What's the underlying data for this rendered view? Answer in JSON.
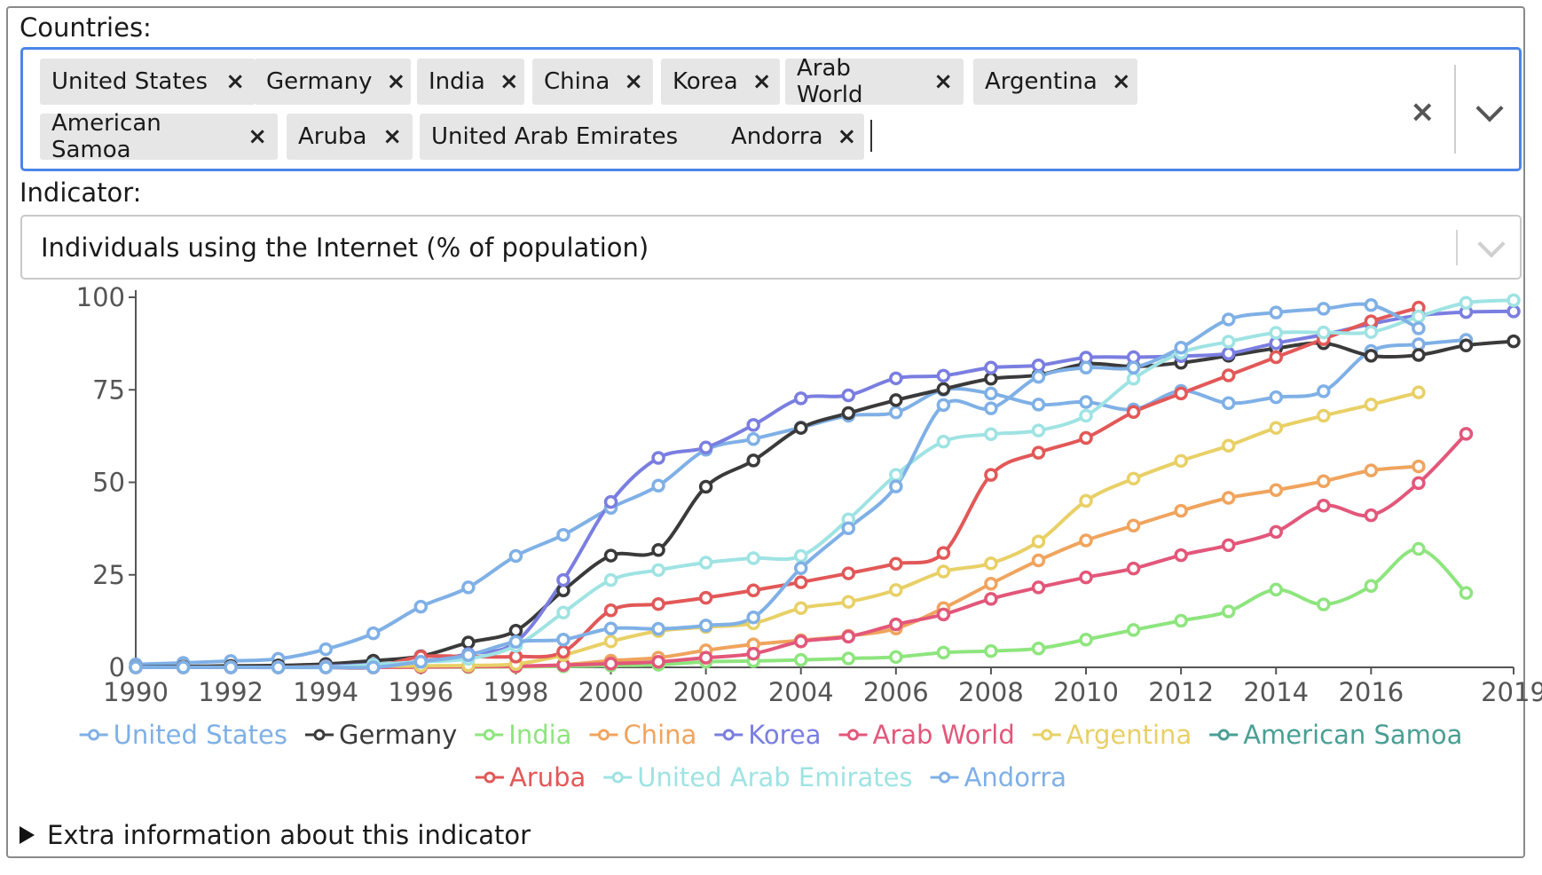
{
  "countries": {
    "label": "Countries:",
    "selected": [
      "United States",
      "Germany",
      "India",
      "China",
      "Korea",
      "Arab World",
      "Argentina",
      "American Samoa",
      "Aruba",
      "United Arab Emirates",
      "Andorra"
    ],
    "remove_glyph": "×",
    "clear_glyph": "×"
  },
  "indicator": {
    "label": "Indicator:",
    "value": "Individuals using the Internet (% of population)"
  },
  "extra_info": {
    "label": "Extra information about this indicator"
  },
  "chart_data": {
    "type": "line",
    "title": "",
    "xlabel": "",
    "ylabel": "",
    "xlim": [
      1990,
      2019
    ],
    "ylim": [
      0,
      100
    ],
    "yticks": [
      0,
      25,
      50,
      75,
      100
    ],
    "xticks": [
      1990,
      1992,
      1994,
      1996,
      1998,
      2000,
      2002,
      2004,
      2006,
      2008,
      2010,
      2012,
      2014,
      2016,
      2019
    ],
    "legend": "bottom",
    "series": [
      {
        "name": "United States",
        "color": "#7fb0e6",
        "x": [
          1990,
          1991,
          1992,
          1993,
          1994,
          1995,
          1996,
          1997,
          1998,
          1999,
          2000,
          2001,
          2002,
          2003,
          2004,
          2005,
          2006,
          2007,
          2008,
          2009,
          2010,
          2011,
          2012,
          2013,
          2014,
          2015,
          2016,
          2017,
          2018
        ],
        "y": [
          0.8,
          1.2,
          1.7,
          2.3,
          4.9,
          9.2,
          16.4,
          21.6,
          30.1,
          35.8,
          43.1,
          49.1,
          58.8,
          61.7,
          64.8,
          68.0,
          68.9,
          75.0,
          74.0,
          71.0,
          71.7,
          69.7,
          74.7,
          71.4,
          73.0,
          74.6,
          85.5,
          87.3,
          88.5
        ]
      },
      {
        "name": "Germany",
        "color": "#3a3a3a",
        "x": [
          1990,
          1991,
          1992,
          1993,
          1994,
          1995,
          1996,
          1997,
          1998,
          1999,
          2000,
          2001,
          2002,
          2003,
          2004,
          2005,
          2006,
          2007,
          2008,
          2009,
          2010,
          2011,
          2012,
          2013,
          2014,
          2015,
          2016,
          2017,
          2018,
          2019
        ],
        "y": [
          0.1,
          0.2,
          0.4,
          0.5,
          0.9,
          1.8,
          3.0,
          6.7,
          9.9,
          20.8,
          30.2,
          31.7,
          48.8,
          55.9,
          64.7,
          68.7,
          72.2,
          75.2,
          78.0,
          79.0,
          82.0,
          81.3,
          82.3,
          84.2,
          86.2,
          87.6,
          84.2,
          84.4,
          87.0,
          88.1
        ]
      },
      {
        "name": "India",
        "color": "#8ee57e",
        "x": [
          1990,
          1991,
          1992,
          1993,
          1994,
          1995,
          1996,
          1997,
          1998,
          1999,
          2000,
          2001,
          2002,
          2003,
          2004,
          2005,
          2006,
          2007,
          2008,
          2009,
          2010,
          2011,
          2012,
          2013,
          2014,
          2015,
          2016,
          2017,
          2018
        ],
        "y": [
          0,
          0,
          0,
          0,
          0,
          0,
          0.05,
          0.07,
          0.14,
          0.27,
          0.5,
          0.7,
          1.5,
          1.7,
          2.0,
          2.4,
          2.8,
          4.0,
          4.4,
          5.1,
          7.5,
          10.1,
          12.6,
          15.1,
          21.0,
          17.0,
          22.0,
          32.0,
          20.1
        ]
      },
      {
        "name": "China",
        "color": "#f0a45e",
        "x": [
          1990,
          1991,
          1992,
          1993,
          1994,
          1995,
          1996,
          1997,
          1998,
          1999,
          2000,
          2001,
          2002,
          2003,
          2004,
          2005,
          2006,
          2007,
          2008,
          2009,
          2010,
          2011,
          2012,
          2013,
          2014,
          2015,
          2016,
          2017
        ],
        "y": [
          0,
          0,
          0,
          0,
          0,
          0,
          0.1,
          0.2,
          0.2,
          0.7,
          1.8,
          2.6,
          4.6,
          6.2,
          7.3,
          8.5,
          10.5,
          16.0,
          22.6,
          28.9,
          34.3,
          38.3,
          42.3,
          45.8,
          47.9,
          50.3,
          53.2,
          54.3
        ]
      },
      {
        "name": "Korea",
        "color": "#7a7ee0",
        "x": [
          1990,
          1991,
          1992,
          1993,
          1994,
          1995,
          1996,
          1997,
          1998,
          1999,
          2000,
          2001,
          2002,
          2003,
          2004,
          2005,
          2006,
          2007,
          2008,
          2009,
          2010,
          2011,
          2012,
          2013,
          2014,
          2015,
          2016,
          2017,
          2018,
          2019
        ],
        "y": [
          0,
          0,
          0,
          0,
          0.3,
          0.8,
          1.6,
          3.6,
          6.8,
          23.6,
          44.7,
          56.6,
          59.4,
          65.5,
          72.7,
          73.5,
          78.1,
          78.8,
          81.0,
          81.6,
          83.7,
          83.8,
          84.1,
          84.8,
          87.6,
          89.9,
          92.8,
          95.1,
          96.0,
          96.2
        ]
      },
      {
        "name": "Arab World",
        "color": "#e2577a",
        "x": [
          1990,
          1991,
          1992,
          1993,
          1994,
          1995,
          1996,
          1997,
          1998,
          1999,
          2000,
          2001,
          2002,
          2003,
          2004,
          2005,
          2006,
          2007,
          2008,
          2009,
          2010,
          2011,
          2012,
          2013,
          2014,
          2015,
          2016,
          2017,
          2018
        ],
        "y": [
          0,
          0,
          0,
          0,
          0,
          0,
          0.1,
          0.2,
          0.3,
          0.6,
          1.0,
          1.5,
          2.6,
          3.7,
          7.0,
          8.3,
          11.6,
          14.3,
          18.5,
          21.6,
          24.3,
          26.7,
          30.3,
          33.0,
          36.6,
          43.7,
          41.1,
          49.8,
          63.1
        ]
      },
      {
        "name": "Argentina",
        "color": "#e8d066",
        "x": [
          1990,
          1991,
          1992,
          1993,
          1994,
          1995,
          1996,
          1997,
          1998,
          1999,
          2000,
          2001,
          2002,
          2003,
          2004,
          2005,
          2006,
          2007,
          2008,
          2009,
          2010,
          2011,
          2012,
          2013,
          2014,
          2015,
          2016,
          2017
        ],
        "y": [
          0,
          0,
          0,
          0,
          0.1,
          0.3,
          0.4,
          0.5,
          0.9,
          3.3,
          7.0,
          9.8,
          10.9,
          11.9,
          16.0,
          17.7,
          20.9,
          25.9,
          28.1,
          34.0,
          45.0,
          51.0,
          55.8,
          59.9,
          64.7,
          68.0,
          71.0,
          74.3
        ]
      },
      {
        "name": "American Samoa",
        "color": "#4a9f94",
        "x": [],
        "y": []
      },
      {
        "name": "Aruba",
        "color": "#e25858",
        "x": [
          1990,
          1991,
          1992,
          1993,
          1994,
          1995,
          1996,
          1997,
          1998,
          1999,
          2000,
          2001,
          2002,
          2003,
          2004,
          2005,
          2006,
          2007,
          2008,
          2009,
          2010,
          2011,
          2012,
          2013,
          2014,
          2015,
          2016,
          2017
        ],
        "y": [
          0,
          0,
          0,
          0,
          0,
          0,
          2.9,
          2.9,
          2.9,
          4.2,
          15.4,
          17.1,
          18.8,
          20.8,
          23.0,
          25.4,
          28.0,
          30.9,
          52.0,
          58.0,
          62.0,
          69.0,
          74.0,
          78.9,
          83.8,
          88.7,
          93.5,
          97.2
        ]
      },
      {
        "name": "United Arab Emirates",
        "color": "#9fe3e3",
        "x": [
          1990,
          1991,
          1992,
          1993,
          1994,
          1995,
          1996,
          1997,
          1998,
          1999,
          2000,
          2001,
          2002,
          2003,
          2004,
          2005,
          2006,
          2007,
          2008,
          2009,
          2010,
          2011,
          2012,
          2013,
          2014,
          2015,
          2016,
          2017,
          2018,
          2019
        ],
        "y": [
          0,
          0,
          0,
          0,
          0,
          0.7,
          1.5,
          2.3,
          5.8,
          14.8,
          23.6,
          26.3,
          28.3,
          29.5,
          30.1,
          40.0,
          52.0,
          61.0,
          63.0,
          64.0,
          68.0,
          78.0,
          85.0,
          88.0,
          90.4,
          90.5,
          90.6,
          94.8,
          98.5,
          99.2
        ]
      },
      {
        "name": "Andorra",
        "color": "#7fb0e6",
        "x": [
          1990,
          1991,
          1992,
          1993,
          1994,
          1995,
          1996,
          1997,
          1998,
          1999,
          2000,
          2001,
          2002,
          2003,
          2004,
          2005,
          2006,
          2007,
          2008,
          2009,
          2010,
          2011,
          2012,
          2013,
          2014,
          2015,
          2016,
          2017
        ],
        "y": [
          0,
          0,
          0,
          0,
          0,
          0,
          1.5,
          3.3,
          6.9,
          7.5,
          10.5,
          10.4,
          11.3,
          13.5,
          26.8,
          37.6,
          48.9,
          70.9,
          70.0,
          78.5,
          81.0,
          81.0,
          86.4,
          94.0,
          95.9,
          96.9,
          97.9,
          91.6
        ]
      }
    ]
  }
}
